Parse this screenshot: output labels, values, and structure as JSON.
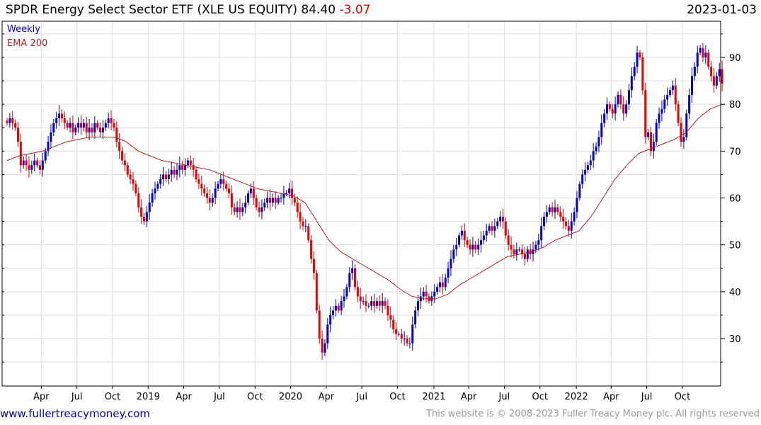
{
  "header": {
    "title": "SPDR Energy Select Sector ETF (XLE US EQUITY) 84.40",
    "change": "-3.07",
    "date": "2023-01-03"
  },
  "legend": {
    "weekly": "Weekly",
    "ema": "EMA 200"
  },
  "footer": {
    "link": "www.fullertreacymoney.com",
    "copyright": "This website is © 2008-2023 Fuller Treacy Money plc. All rights reserved"
  },
  "colors": {
    "up": "#0000dd",
    "down": "#ee0000",
    "ema": "#b22222",
    "grid": "#dddddd"
  },
  "chart_data": {
    "type": "candlestick",
    "title": "SPDR Energy Select Sector ETF (XLE US EQUITY)",
    "frequency": "weekly",
    "start": "2018-01-05",
    "end": "2023-01-03",
    "ylim": [
      21,
      98
    ],
    "yticks": [
      30,
      40,
      50,
      60,
      70,
      80,
      90
    ],
    "xticks": [
      {
        "label": "Apr",
        "week": 12.5
      },
      {
        "label": "Jul",
        "week": 25.5
      },
      {
        "label": "Oct",
        "week": 38.5
      },
      {
        "label": "2019",
        "week": 51.5
      },
      {
        "label": "Apr",
        "week": 64.5
      },
      {
        "label": "Jul",
        "week": 77.5
      },
      {
        "label": "Oct",
        "week": 90.5
      },
      {
        "label": "2020",
        "week": 103.5
      },
      {
        "label": "Apr",
        "week": 116.5
      },
      {
        "label": "Jul",
        "week": 129.5
      },
      {
        "label": "Oct",
        "week": 142.5
      },
      {
        "label": "2021",
        "week": 155.8
      },
      {
        "label": "Apr",
        "week": 168.5
      },
      {
        "label": "Jul",
        "week": 181.5
      },
      {
        "label": "Oct",
        "week": 194.5
      },
      {
        "label": "2022",
        "week": 207.8
      },
      {
        "label": "Apr",
        "week": 220.5
      },
      {
        "label": "Jul",
        "week": 233.5
      },
      {
        "label": "Oct",
        "week": 246.5
      }
    ],
    "closes": [
      76,
      77,
      76,
      75,
      72,
      67,
      68,
      67,
      66,
      67,
      68,
      67,
      66,
      68,
      70,
      72,
      74,
      76,
      77,
      78,
      77,
      76,
      75,
      76,
      74,
      75,
      76,
      75,
      76,
      74,
      75,
      74,
      76,
      75,
      74,
      75,
      76,
      77,
      76,
      75,
      72,
      70,
      68,
      67,
      65,
      64,
      63,
      61,
      58,
      56,
      55,
      57,
      59,
      61,
      62,
      63,
      64,
      65,
      64,
      65,
      66,
      65,
      66,
      67,
      66,
      67,
      68,
      67,
      66,
      64,
      63,
      62,
      61,
      60,
      59,
      60,
      62,
      63,
      64,
      63,
      62,
      61,
      58,
      57,
      58,
      57,
      58,
      59,
      61,
      62,
      60,
      58,
      57,
      58,
      59,
      60,
      59,
      60,
      59,
      60,
      60,
      61,
      61,
      62,
      60,
      59,
      57,
      55,
      54,
      54,
      51,
      47,
      44,
      36,
      30,
      27,
      29,
      33,
      35,
      36,
      37,
      36,
      38,
      39,
      41,
      44,
      45,
      41,
      39,
      38,
      38,
      37,
      37,
      38,
      37,
      38,
      37,
      38,
      37,
      35,
      34,
      32,
      31,
      31,
      30,
      30,
      29,
      29,
      33,
      36,
      38,
      39,
      40,
      39,
      38,
      39,
      40,
      41,
      42,
      41,
      43,
      45,
      47,
      49,
      50,
      52,
      53,
      51,
      50,
      49,
      50,
      49,
      50,
      51,
      52,
      53,
      54,
      53,
      54,
      55,
      56,
      55,
      52,
      50,
      49,
      48,
      49,
      49,
      48,
      47,
      49,
      48,
      49,
      50,
      51,
      54,
      56,
      57,
      58,
      57,
      58,
      57,
      56,
      55,
      54,
      53,
      55,
      57,
      60,
      63,
      65,
      66,
      67,
      68,
      70,
      71,
      73,
      76,
      78,
      80,
      79,
      78,
      80,
      82,
      80,
      78,
      80,
      83,
      86,
      88,
      91,
      90,
      83,
      73,
      74,
      70,
      72,
      76,
      78,
      79,
      81,
      82,
      83,
      84,
      80,
      76,
      72,
      73,
      78,
      82,
      86,
      88,
      91,
      92,
      90,
      91,
      88,
      86,
      84,
      86,
      87.47,
      84.4
    ],
    "ema200_monthly": [
      68,
      69,
      69.5,
      70,
      71,
      72,
      72.5,
      73,
      73,
      73,
      72,
      70,
      69,
      68,
      67.5,
      67,
      66.5,
      66,
      65,
      64,
      63,
      62,
      61.5,
      61,
      60.5,
      59,
      55,
      51,
      48.5,
      47,
      45.5,
      44,
      42.5,
      40.5,
      39,
      38.5,
      38.5,
      39.5,
      41.5,
      43,
      44.5,
      46,
      47.5,
      48,
      48.5,
      49.5,
      51,
      52,
      53,
      56,
      60,
      64,
      67,
      69.5,
      70.5,
      71.5,
      72.5,
      74,
      77,
      79,
      80
    ],
    "series": [
      {
        "name": "Weekly"
      },
      {
        "name": "EMA 200"
      }
    ]
  }
}
